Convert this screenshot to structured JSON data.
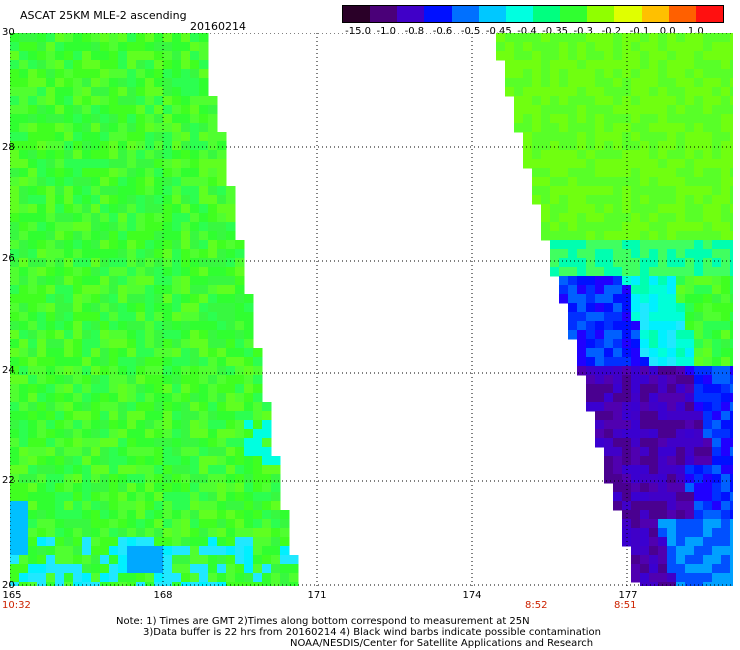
{
  "header": {
    "title": "ASCAT 25KM MLE-2 ascending",
    "date": "20160214"
  },
  "colorbar": {
    "labels": [
      "-15.0",
      "-1.0",
      "-0.8",
      "-0.6",
      "-0.5",
      "-0.45",
      "-0.4",
      "-0.35",
      "-0.3",
      "-0.2",
      "-0.1",
      "0.0",
      "1.0"
    ],
    "colors": [
      "#2a0028",
      "#4a0078",
      "#4000c8",
      "#0010ff",
      "#0070ff",
      "#00c8ff",
      "#00ffe0",
      "#00ff80",
      "#30ff30",
      "#90ff00",
      "#e0ff00",
      "#ffc000",
      "#ff6000",
      "#ff1010"
    ]
  },
  "map": {
    "lon_range": [
      165,
      179
    ],
    "lat_range": [
      20,
      30
    ],
    "y_ticks": [
      "30",
      "28",
      "26",
      "24",
      "22",
      "20"
    ],
    "x_ticks": [
      "165",
      "168",
      "171",
      "174",
      "177"
    ],
    "times": [
      {
        "lon": 165,
        "label": "10:32"
      },
      {
        "lon": 175.5,
        "label": "8:52"
      },
      {
        "lon": 177,
        "label": "8:51"
      }
    ]
  },
  "notes": {
    "line1": "Note: 1) Times are GMT 2)Times along bottom correspond to measurement at 25N",
    "line2": "3)Data buffer is 22 hrs from 20160214 4) Black wind barbs indicate possible contamination",
    "line3": "NOAA/NESDIS/Center for Satellite Applications and Research"
  }
}
